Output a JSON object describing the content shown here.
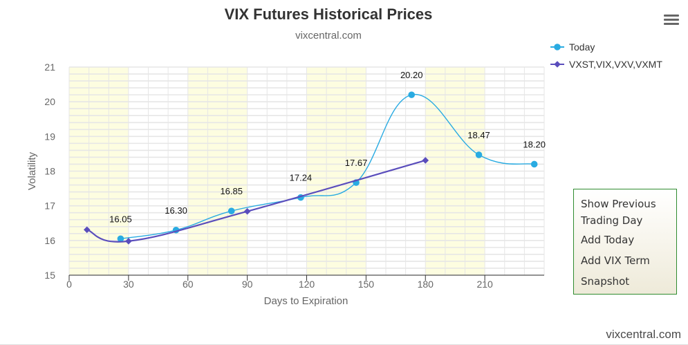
{
  "chart_data": {
    "type": "line",
    "title": "VIX Futures Historical Prices",
    "subtitle": "vixcentral.com",
    "xlabel": "Days to Expiration",
    "ylabel": "Volatility",
    "xlim": [
      0,
      240
    ],
    "ylim": [
      15,
      21
    ],
    "x_ticks": [
      0,
      30,
      60,
      90,
      120,
      150,
      180,
      210
    ],
    "y_ticks": [
      15,
      16,
      17,
      18,
      19,
      20,
      21
    ],
    "grid": true,
    "legend_position": "top-right",
    "shaded_x_bands": [
      [
        0,
        30
      ],
      [
        60,
        90
      ],
      [
        120,
        150
      ],
      [
        180,
        210
      ]
    ],
    "series": [
      {
        "name": "Today",
        "color": "#29abe2",
        "marker": "circle",
        "smooth": true,
        "data_labels": true,
        "x": [
          26,
          54,
          82,
          117,
          145,
          173,
          207,
          235
        ],
        "y": [
          16.05,
          16.3,
          16.85,
          17.24,
          17.67,
          20.2,
          18.47,
          18.2
        ]
      },
      {
        "name": "VXST,VIX,VXV,VXMT",
        "color": "#5a4dbc",
        "marker": "diamond",
        "smooth": true,
        "data_labels": false,
        "x": [
          9,
          30,
          90,
          180
        ],
        "y": [
          16.31,
          15.98,
          16.84,
          18.31
        ]
      }
    ]
  },
  "colors": {
    "band_fill": "#fdfde0",
    "grid_line": "#e6e6e6",
    "axis_text": "#666666",
    "title_text": "#333333"
  },
  "context_menu": {
    "items": [
      "Show Previous Trading Day",
      "Add Today",
      "Add VIX Term",
      "Snapshot"
    ]
  },
  "watermark": "vixcentral.com",
  "menu_icon": "hamburger-menu-icon"
}
